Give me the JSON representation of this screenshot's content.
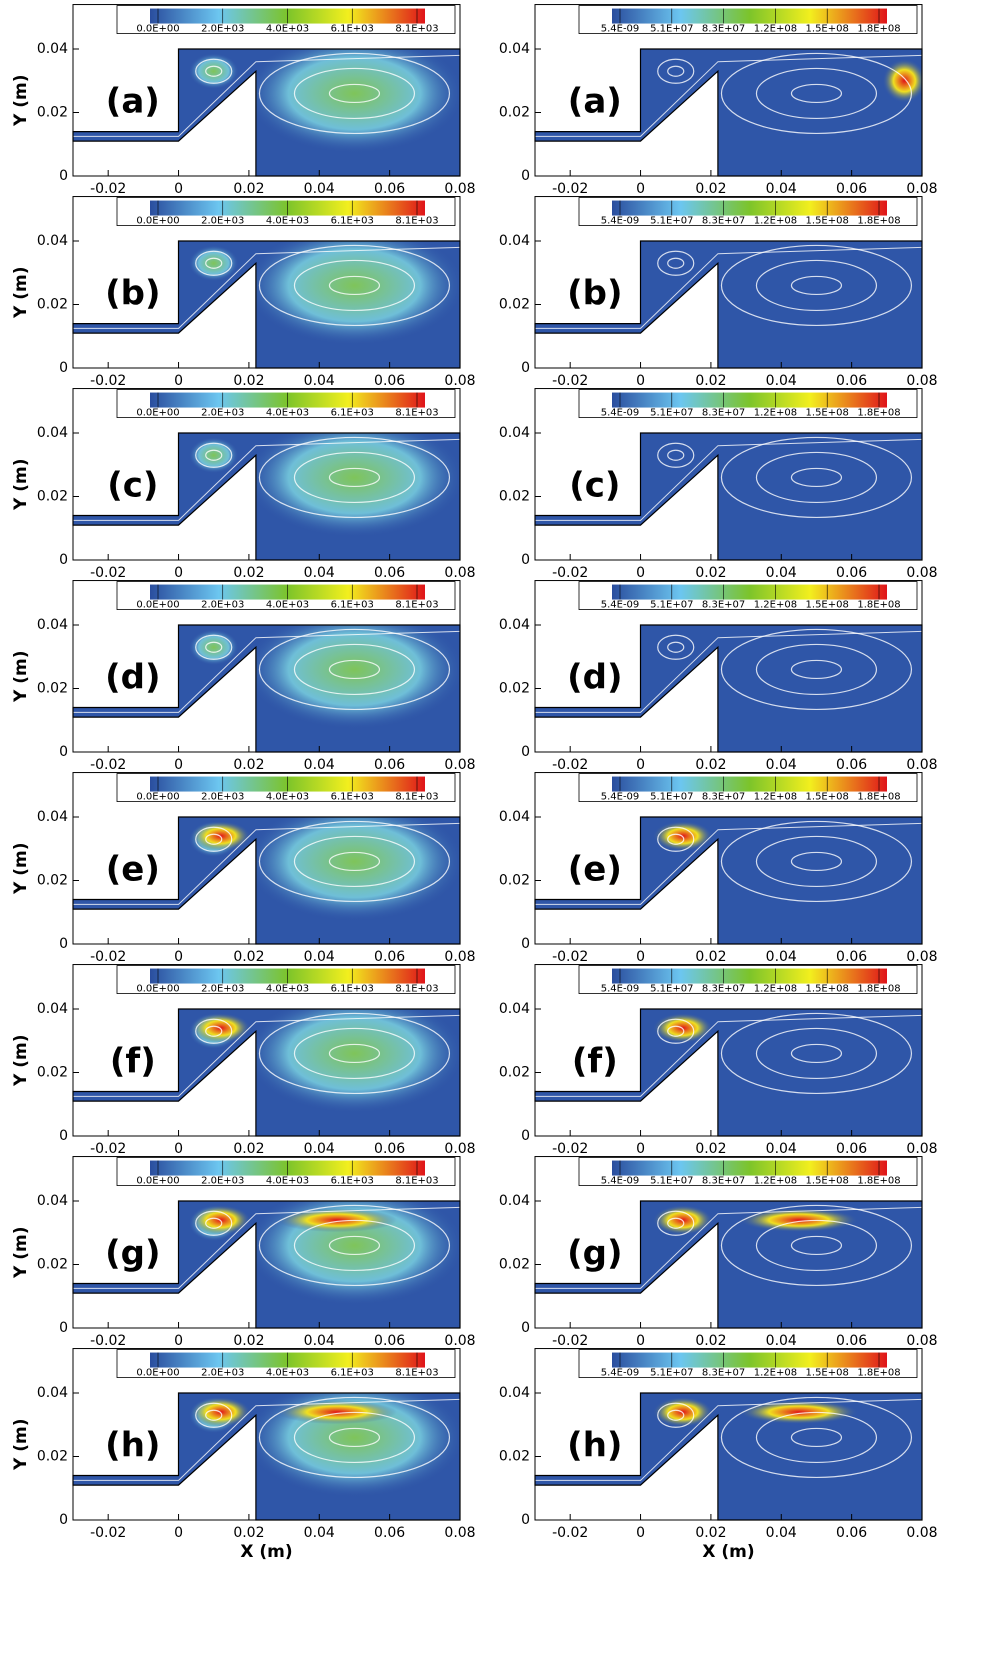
{
  "chart_data": [
    {
      "type": "contour",
      "panel_label": "(a)",
      "ylabel": "Y (m)",
      "xlim": [
        -0.03,
        0.08
      ],
      "ylim": [
        0,
        0.054
      ],
      "xticks": [
        -0.02,
        0,
        0.02,
        0.04,
        0.06,
        0.08
      ],
      "yticks": [
        0,
        0.02,
        0.04
      ],
      "colorbar_ticks": [
        {
          "value": 0,
          "label": "0.0E+00"
        },
        {
          "value": 2000,
          "label": "2.0E+03"
        },
        {
          "value": 4000,
          "label": "4.0E+03"
        },
        {
          "value": 6100,
          "label": "6.1E+03"
        },
        {
          "value": 8100,
          "label": "8.1E+03"
        }
      ]
    },
    {
      "type": "contour",
      "panel_label": "(a)",
      "xlim": [
        -0.03,
        0.08
      ],
      "ylim": [
        0,
        0.054
      ],
      "xticks": [
        -0.02,
        0,
        0.02,
        0.04,
        0.06,
        0.08
      ],
      "yticks": [
        0,
        0.02,
        0.04
      ],
      "colorbar_ticks": [
        {
          "value": 5.4e-09,
          "label": "5.4E-09"
        },
        {
          "value": 51000000,
          "label": "5.1E+07"
        },
        {
          "value": 83000000,
          "label": "8.3E+07"
        },
        {
          "value": 120000000,
          "label": "1.2E+08"
        },
        {
          "value": 150000000,
          "label": "1.5E+08"
        },
        {
          "value": 180000000,
          "label": "1.8E+08"
        }
      ]
    },
    {
      "type": "contour",
      "panel_label": "(b)",
      "ylabel": "Y (m)",
      "xlim": [
        -0.03,
        0.08
      ],
      "ylim": [
        0,
        0.054
      ],
      "xticks": [
        -0.02,
        0,
        0.02,
        0.04,
        0.06,
        0.08
      ],
      "yticks": [
        0,
        0.02,
        0.04
      ],
      "colorbar_ticks": [
        {
          "value": 0,
          "label": "0.0E+00"
        },
        {
          "value": 2000,
          "label": "2.0E+03"
        },
        {
          "value": 4000,
          "label": "4.0E+03"
        },
        {
          "value": 6100,
          "label": "6.1E+03"
        },
        {
          "value": 8100,
          "label": "8.1E+03"
        }
      ]
    },
    {
      "type": "contour",
      "panel_label": "(b)",
      "xlim": [
        -0.03,
        0.08
      ],
      "ylim": [
        0,
        0.054
      ],
      "xticks": [
        -0.02,
        0,
        0.02,
        0.04,
        0.06,
        0.08
      ],
      "yticks": [
        0,
        0.02,
        0.04
      ],
      "colorbar_ticks": [
        {
          "value": 5.4e-09,
          "label": "5.4E-09"
        },
        {
          "value": 51000000,
          "label": "5.1E+07"
        },
        {
          "value": 83000000,
          "label": "8.3E+07"
        },
        {
          "value": 120000000,
          "label": "1.2E+08"
        },
        {
          "value": 150000000,
          "label": "1.5E+08"
        },
        {
          "value": 180000000,
          "label": "1.8E+08"
        }
      ]
    },
    {
      "type": "contour",
      "panel_label": "(c)",
      "ylabel": "Y (m)",
      "xlim": [
        -0.03,
        0.08
      ],
      "ylim": [
        0,
        0.054
      ],
      "xticks": [
        -0.02,
        0,
        0.02,
        0.04,
        0.06,
        0.08
      ],
      "yticks": [
        0,
        0.02,
        0.04
      ],
      "colorbar_ticks": [
        {
          "value": 0,
          "label": "0.0E+00"
        },
        {
          "value": 2000,
          "label": "2.0E+03"
        },
        {
          "value": 4000,
          "label": "4.0E+03"
        },
        {
          "value": 6100,
          "label": "6.1E+03"
        },
        {
          "value": 8100,
          "label": "8.1E+03"
        }
      ]
    },
    {
      "type": "contour",
      "panel_label": "(c)",
      "xlim": [
        -0.03,
        0.08
      ],
      "ylim": [
        0,
        0.054
      ],
      "xticks": [
        -0.02,
        0,
        0.02,
        0.04,
        0.06,
        0.08
      ],
      "yticks": [
        0,
        0.02,
        0.04
      ],
      "colorbar_ticks": [
        {
          "value": 5.4e-09,
          "label": "5.4E-09"
        },
        {
          "value": 51000000,
          "label": "5.1E+07"
        },
        {
          "value": 83000000,
          "label": "8.3E+07"
        },
        {
          "value": 120000000,
          "label": "1.2E+08"
        },
        {
          "value": 150000000,
          "label": "1.5E+08"
        },
        {
          "value": 180000000,
          "label": "1.8E+08"
        }
      ]
    },
    {
      "type": "contour",
      "panel_label": "(d)",
      "ylabel": "Y (m)",
      "xlim": [
        -0.03,
        0.08
      ],
      "ylim": [
        0,
        0.054
      ],
      "xticks": [
        -0.02,
        0,
        0.02,
        0.04,
        0.06,
        0.08
      ],
      "yticks": [
        0,
        0.02,
        0.04
      ],
      "colorbar_ticks": [
        {
          "value": 0,
          "label": "0.0E+00"
        },
        {
          "value": 2000,
          "label": "2.0E+03"
        },
        {
          "value": 4000,
          "label": "4.0E+03"
        },
        {
          "value": 6100,
          "label": "6.1E+03"
        },
        {
          "value": 8100,
          "label": "8.1E+03"
        }
      ]
    },
    {
      "type": "contour",
      "panel_label": "(d)",
      "xlim": [
        -0.03,
        0.08
      ],
      "ylim": [
        0,
        0.054
      ],
      "xticks": [
        -0.02,
        0,
        0.02,
        0.04,
        0.06,
        0.08
      ],
      "yticks": [
        0,
        0.02,
        0.04
      ],
      "colorbar_ticks": [
        {
          "value": 5.4e-09,
          "label": "5.4E-09"
        },
        {
          "value": 51000000,
          "label": "5.1E+07"
        },
        {
          "value": 83000000,
          "label": "8.3E+07"
        },
        {
          "value": 120000000,
          "label": "1.2E+08"
        },
        {
          "value": 150000000,
          "label": "1.5E+08"
        },
        {
          "value": 180000000,
          "label": "1.8E+08"
        }
      ]
    },
    {
      "type": "contour",
      "panel_label": "(e)",
      "ylabel": "Y (m)",
      "xlim": [
        -0.03,
        0.08
      ],
      "ylim": [
        0,
        0.054
      ],
      "xticks": [
        -0.02,
        0,
        0.02,
        0.04,
        0.06,
        0.08
      ],
      "yticks": [
        0,
        0.02,
        0.04
      ],
      "colorbar_ticks": [
        {
          "value": 0,
          "label": "0.0E+00"
        },
        {
          "value": 2000,
          "label": "2.0E+03"
        },
        {
          "value": 4000,
          "label": "4.0E+03"
        },
        {
          "value": 6100,
          "label": "6.1E+03"
        },
        {
          "value": 8100,
          "label": "8.1E+03"
        }
      ]
    },
    {
      "type": "contour",
      "panel_label": "(e)",
      "xlim": [
        -0.03,
        0.08
      ],
      "ylim": [
        0,
        0.054
      ],
      "xticks": [
        -0.02,
        0,
        0.02,
        0.04,
        0.06,
        0.08
      ],
      "yticks": [
        0,
        0.02,
        0.04
      ],
      "colorbar_ticks": [
        {
          "value": 5.4e-09,
          "label": "5.4E-09"
        },
        {
          "value": 51000000,
          "label": "5.1E+07"
        },
        {
          "value": 83000000,
          "label": "8.3E+07"
        },
        {
          "value": 120000000,
          "label": "1.2E+08"
        },
        {
          "value": 150000000,
          "label": "1.5E+08"
        },
        {
          "value": 180000000,
          "label": "1.8E+08"
        }
      ]
    },
    {
      "type": "contour",
      "panel_label": "(f)",
      "ylabel": "Y (m)",
      "xlim": [
        -0.03,
        0.08
      ],
      "ylim": [
        0,
        0.054
      ],
      "xticks": [
        -0.02,
        0,
        0.02,
        0.04,
        0.06,
        0.08
      ],
      "yticks": [
        0,
        0.02,
        0.04
      ],
      "colorbar_ticks": [
        {
          "value": 0,
          "label": "0.0E+00"
        },
        {
          "value": 2000,
          "label": "2.0E+03"
        },
        {
          "value": 4000,
          "label": "4.0E+03"
        },
        {
          "value": 6100,
          "label": "6.1E+03"
        },
        {
          "value": 8100,
          "label": "8.1E+03"
        }
      ]
    },
    {
      "type": "contour",
      "panel_label": "(f)",
      "xlim": [
        -0.03,
        0.08
      ],
      "ylim": [
        0,
        0.054
      ],
      "xticks": [
        -0.02,
        0,
        0.02,
        0.04,
        0.06,
        0.08
      ],
      "yticks": [
        0,
        0.02,
        0.04
      ],
      "colorbar_ticks": [
        {
          "value": 5.4e-09,
          "label": "5.4E-09"
        },
        {
          "value": 51000000,
          "label": "5.1E+07"
        },
        {
          "value": 83000000,
          "label": "8.3E+07"
        },
        {
          "value": 120000000,
          "label": "1.2E+08"
        },
        {
          "value": 150000000,
          "label": "1.5E+08"
        },
        {
          "value": 180000000,
          "label": "1.8E+08"
        }
      ]
    },
    {
      "type": "contour",
      "panel_label": "(g)",
      "ylabel": "Y (m)",
      "xlim": [
        -0.03,
        0.08
      ],
      "ylim": [
        0,
        0.054
      ],
      "xticks": [
        -0.02,
        0,
        0.02,
        0.04,
        0.06,
        0.08
      ],
      "yticks": [
        0,
        0.02,
        0.04
      ],
      "colorbar_ticks": [
        {
          "value": 0,
          "label": "0.0E+00"
        },
        {
          "value": 2000,
          "label": "2.0E+03"
        },
        {
          "value": 4000,
          "label": "4.0E+03"
        },
        {
          "value": 6100,
          "label": "6.1E+03"
        },
        {
          "value": 8100,
          "label": "8.1E+03"
        }
      ]
    },
    {
      "type": "contour",
      "panel_label": "(g)",
      "xlim": [
        -0.03,
        0.08
      ],
      "ylim": [
        0,
        0.054
      ],
      "xticks": [
        -0.02,
        0,
        0.02,
        0.04,
        0.06,
        0.08
      ],
      "yticks": [
        0,
        0.02,
        0.04
      ],
      "colorbar_ticks": [
        {
          "value": 5.4e-09,
          "label": "5.4E-09"
        },
        {
          "value": 51000000,
          "label": "5.1E+07"
        },
        {
          "value": 83000000,
          "label": "8.3E+07"
        },
        {
          "value": 120000000,
          "label": "1.2E+08"
        },
        {
          "value": 150000000,
          "label": "1.5E+08"
        },
        {
          "value": 180000000,
          "label": "1.8E+08"
        }
      ]
    },
    {
      "type": "contour",
      "panel_label": "(h)",
      "xlabel": "X (m)",
      "ylabel": "Y (m)",
      "xlim": [
        -0.03,
        0.08
      ],
      "ylim": [
        0,
        0.054
      ],
      "xticks": [
        -0.02,
        0,
        0.02,
        0.04,
        0.06,
        0.08
      ],
      "yticks": [
        0,
        0.02,
        0.04
      ],
      "colorbar_ticks": [
        {
          "value": 0,
          "label": "0.0E+00"
        },
        {
          "value": 2000,
          "label": "2.0E+03"
        },
        {
          "value": 4000,
          "label": "4.0E+03"
        },
        {
          "value": 6100,
          "label": "6.1E+03"
        },
        {
          "value": 8100,
          "label": "8.1E+03"
        }
      ]
    },
    {
      "type": "contour",
      "panel_label": "(h)",
      "xlabel": "X (m)",
      "xlim": [
        -0.03,
        0.08
      ],
      "ylim": [
        0,
        0.054
      ],
      "xticks": [
        -0.02,
        0,
        0.02,
        0.04,
        0.06,
        0.08
      ],
      "yticks": [
        0,
        0.02,
        0.04
      ],
      "colorbar_ticks": [
        {
          "value": 5.4e-09,
          "label": "5.4E-09"
        },
        {
          "value": 51000000,
          "label": "5.1E+07"
        },
        {
          "value": 83000000,
          "label": "8.3E+07"
        },
        {
          "value": 120000000,
          "label": "1.2E+08"
        },
        {
          "value": 150000000,
          "label": "1.5E+08"
        },
        {
          "value": 180000000,
          "label": "1.8E+08"
        }
      ]
    }
  ]
}
